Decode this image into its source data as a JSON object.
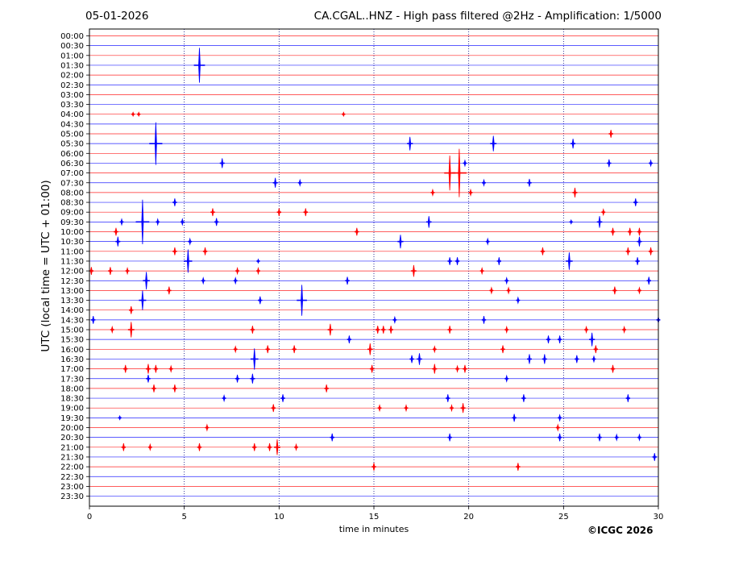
{
  "header": {
    "date": "05-01-2026",
    "title": "CA.CGAL..HNZ - High pass filtered @2Hz - Amplification: 1/5000"
  },
  "footer": {
    "copyright": "©ICGC 2026"
  },
  "colors": {
    "odd_trace": "#ff0000",
    "even_trace": "#0000ff",
    "grid": "#000080"
  },
  "chart_data": {
    "type": "line",
    "title": "CA.CGAL..HNZ - High pass filtered @2Hz - Amplification: 1/5000",
    "xlabel": "time in minutes",
    "ylabel": "UTC (local time = UTC + 01:00)",
    "xlim": [
      0,
      30
    ],
    "x_ticks": [
      0,
      5,
      10,
      15,
      20,
      25,
      30
    ],
    "grid": "vertical dotted at each x tick",
    "rows": [
      "00:00",
      "00:30",
      "01:00",
      "01:30",
      "02:00",
      "02:30",
      "03:00",
      "03:30",
      "04:00",
      "04:30",
      "05:00",
      "05:30",
      "06:00",
      "06:30",
      "07:00",
      "07:30",
      "08:00",
      "08:30",
      "09:00",
      "09:30",
      "10:00",
      "10:30",
      "11:00",
      "11:30",
      "12:00",
      "12:30",
      "13:00",
      "13:30",
      "14:00",
      "14:30",
      "15:00",
      "15:30",
      "16:00",
      "16:30",
      "17:00",
      "17:30",
      "18:00",
      "18:30",
      "19:00",
      "19:30",
      "20:00",
      "20:30",
      "21:00",
      "21:30",
      "22:00",
      "22:30",
      "23:00",
      "23:30"
    ],
    "trace_colors": [
      "#ff0000",
      "#0000ff"
    ],
    "events": [
      [
        "01:30",
        5.8,
        1.8
      ],
      [
        "04:00",
        2.3,
        0.2
      ],
      [
        "04:00",
        2.6,
        0.2
      ],
      [
        "04:00",
        13.4,
        0.2
      ],
      [
        "05:00",
        27.5,
        0.4
      ],
      [
        "05:30",
        3.5,
        2.2
      ],
      [
        "05:30",
        16.9,
        0.7
      ],
      [
        "05:30",
        21.3,
        0.8
      ],
      [
        "05:30",
        25.5,
        0.5
      ],
      [
        "06:30",
        7.0,
        0.5
      ],
      [
        "06:30",
        19.8,
        0.3
      ],
      [
        "06:30",
        27.4,
        0.4
      ],
      [
        "06:30",
        29.6,
        0.3
      ],
      [
        "07:00",
        19.0,
        1.8
      ],
      [
        "07:00",
        19.5,
        2.5
      ],
      [
        "07:30",
        9.8,
        0.5
      ],
      [
        "07:30",
        11.1,
        0.3
      ],
      [
        "07:30",
        20.8,
        0.3
      ],
      [
        "07:30",
        23.2,
        0.4
      ],
      [
        "08:00",
        18.1,
        0.3
      ],
      [
        "08:00",
        20.1,
        0.3
      ],
      [
        "08:00",
        25.6,
        0.5
      ],
      [
        "08:30",
        4.5,
        0.4
      ],
      [
        "08:30",
        28.8,
        0.4
      ],
      [
        "09:00",
        6.5,
        0.4
      ],
      [
        "09:00",
        10.0,
        0.4
      ],
      [
        "09:00",
        11.4,
        0.4
      ],
      [
        "09:00",
        27.1,
        0.3
      ],
      [
        "09:30",
        1.7,
        0.3
      ],
      [
        "09:30",
        2.8,
        2.3
      ],
      [
        "09:30",
        3.6,
        0.3
      ],
      [
        "09:30",
        4.9,
        0.3
      ],
      [
        "09:30",
        6.7,
        0.4
      ],
      [
        "09:30",
        17.9,
        0.6
      ],
      [
        "09:30",
        25.4,
        0.2
      ],
      [
        "09:30",
        26.9,
        0.6
      ],
      [
        "10:00",
        1.4,
        0.4
      ],
      [
        "10:00",
        14.1,
        0.4
      ],
      [
        "10:00",
        27.6,
        0.4
      ],
      [
        "10:00",
        28.5,
        0.4
      ],
      [
        "10:00",
        29.0,
        0.4
      ],
      [
        "10:30",
        1.5,
        0.5
      ],
      [
        "10:30",
        5.3,
        0.3
      ],
      [
        "10:30",
        16.4,
        0.7
      ],
      [
        "10:30",
        21.0,
        0.3
      ],
      [
        "10:30",
        29.0,
        0.5
      ],
      [
        "11:00",
        4.5,
        0.4
      ],
      [
        "11:00",
        6.1,
        0.4
      ],
      [
        "11:00",
        23.9,
        0.4
      ],
      [
        "11:00",
        28.4,
        0.4
      ],
      [
        "11:00",
        29.6,
        0.4
      ],
      [
        "11:30",
        5.2,
        1.2
      ],
      [
        "11:30",
        8.9,
        0.2
      ],
      [
        "11:30",
        19.0,
        0.4
      ],
      [
        "11:30",
        19.4,
        0.4
      ],
      [
        "11:30",
        21.6,
        0.4
      ],
      [
        "11:30",
        25.3,
        0.9
      ],
      [
        "11:30",
        28.9,
        0.4
      ],
      [
        "12:00",
        0.1,
        0.4
      ],
      [
        "12:00",
        1.1,
        0.4
      ],
      [
        "12:00",
        2.0,
        0.3
      ],
      [
        "12:00",
        7.8,
        0.3
      ],
      [
        "12:00",
        8.9,
        0.3
      ],
      [
        "12:00",
        17.1,
        0.6
      ],
      [
        "12:00",
        20.7,
        0.3
      ],
      [
        "12:30",
        3.0,
        0.9
      ],
      [
        "12:30",
        6.0,
        0.3
      ],
      [
        "12:30",
        7.7,
        0.3
      ],
      [
        "12:30",
        13.6,
        0.4
      ],
      [
        "12:30",
        22.0,
        0.3
      ],
      [
        "12:30",
        29.5,
        0.4
      ],
      [
        "13:00",
        4.2,
        0.4
      ],
      [
        "13:00",
        21.2,
        0.3
      ],
      [
        "13:00",
        22.1,
        0.3
      ],
      [
        "13:00",
        27.7,
        0.4
      ],
      [
        "13:00",
        29.0,
        0.3
      ],
      [
        "13:30",
        2.8,
        1.0
      ],
      [
        "13:30",
        9.0,
        0.4
      ],
      [
        "13:30",
        11.2,
        1.6
      ],
      [
        "13:30",
        22.6,
        0.3
      ],
      [
        "14:00",
        2.2,
        0.4
      ],
      [
        "14:30",
        0.2,
        0.4
      ],
      [
        "14:30",
        16.1,
        0.3
      ],
      [
        "14:30",
        20.8,
        0.4
      ],
      [
        "14:30",
        30.0,
        0.3
      ],
      [
        "15:00",
        1.2,
        0.3
      ],
      [
        "15:00",
        2.2,
        0.8
      ],
      [
        "15:00",
        8.6,
        0.4
      ],
      [
        "15:00",
        12.7,
        0.6
      ],
      [
        "15:00",
        15.2,
        0.4
      ],
      [
        "15:00",
        15.5,
        0.4
      ],
      [
        "15:00",
        15.9,
        0.4
      ],
      [
        "15:00",
        19.0,
        0.4
      ],
      [
        "15:00",
        22.0,
        0.3
      ],
      [
        "15:00",
        26.2,
        0.3
      ],
      [
        "15:00",
        28.2,
        0.3
      ],
      [
        "15:30",
        13.7,
        0.4
      ],
      [
        "15:30",
        24.2,
        0.4
      ],
      [
        "15:30",
        24.8,
        0.4
      ],
      [
        "15:30",
        26.5,
        0.7
      ],
      [
        "16:00",
        7.7,
        0.3
      ],
      [
        "16:00",
        9.4,
        0.4
      ],
      [
        "16:00",
        10.8,
        0.4
      ],
      [
        "16:00",
        14.8,
        0.6
      ],
      [
        "16:00",
        18.2,
        0.3
      ],
      [
        "16:00",
        21.8,
        0.4
      ],
      [
        "16:00",
        26.7,
        0.4
      ],
      [
        "16:30",
        8.7,
        1.1
      ],
      [
        "16:30",
        17.0,
        0.4
      ],
      [
        "16:30",
        17.4,
        0.6
      ],
      [
        "16:30",
        23.2,
        0.5
      ],
      [
        "16:30",
        24.0,
        0.5
      ],
      [
        "16:30",
        25.7,
        0.4
      ],
      [
        "16:30",
        26.6,
        0.3
      ],
      [
        "17:00",
        1.9,
        0.4
      ],
      [
        "17:00",
        3.1,
        0.5
      ],
      [
        "17:00",
        3.5,
        0.4
      ],
      [
        "17:00",
        4.3,
        0.3
      ],
      [
        "17:00",
        14.9,
        0.4
      ],
      [
        "17:00",
        18.2,
        0.5
      ],
      [
        "17:00",
        19.4,
        0.3
      ],
      [
        "17:00",
        19.8,
        0.4
      ],
      [
        "17:00",
        27.6,
        0.4
      ],
      [
        "17:30",
        3.1,
        0.4
      ],
      [
        "17:30",
        7.8,
        0.4
      ],
      [
        "17:30",
        8.6,
        0.5
      ],
      [
        "17:30",
        22.0,
        0.3
      ],
      [
        "18:00",
        3.4,
        0.4
      ],
      [
        "18:00",
        4.5,
        0.4
      ],
      [
        "18:00",
        12.5,
        0.4
      ],
      [
        "18:30",
        7.1,
        0.3
      ],
      [
        "18:30",
        10.2,
        0.4
      ],
      [
        "18:30",
        18.9,
        0.4
      ],
      [
        "18:30",
        22.9,
        0.4
      ],
      [
        "18:30",
        28.4,
        0.4
      ],
      [
        "19:00",
        9.7,
        0.4
      ],
      [
        "19:00",
        15.3,
        0.3
      ],
      [
        "19:00",
        16.7,
        0.3
      ],
      [
        "19:00",
        19.1,
        0.3
      ],
      [
        "19:00",
        19.7,
        0.5
      ],
      [
        "19:30",
        1.6,
        0.2
      ],
      [
        "19:30",
        22.4,
        0.4
      ],
      [
        "19:30",
        24.8,
        0.3
      ],
      [
        "20:00",
        6.2,
        0.3
      ],
      [
        "20:00",
        24.7,
        0.3
      ],
      [
        "20:30",
        12.8,
        0.4
      ],
      [
        "20:30",
        19.0,
        0.4
      ],
      [
        "20:30",
        24.8,
        0.4
      ],
      [
        "20:30",
        26.9,
        0.4
      ],
      [
        "20:30",
        27.8,
        0.3
      ],
      [
        "20:30",
        29.0,
        0.3
      ],
      [
        "21:00",
        1.8,
        0.4
      ],
      [
        "21:00",
        3.2,
        0.3
      ],
      [
        "21:00",
        5.8,
        0.4
      ],
      [
        "21:00",
        8.7,
        0.4
      ],
      [
        "21:00",
        9.5,
        0.4
      ],
      [
        "21:00",
        9.9,
        0.8
      ],
      [
        "21:00",
        10.9,
        0.3
      ],
      [
        "21:30",
        29.8,
        0.4
      ],
      [
        "22:00",
        15.0,
        0.4
      ],
      [
        "22:00",
        22.6,
        0.4
      ]
    ],
    "event_fields": [
      "row",
      "minute",
      "relative_amplitude"
    ]
  }
}
